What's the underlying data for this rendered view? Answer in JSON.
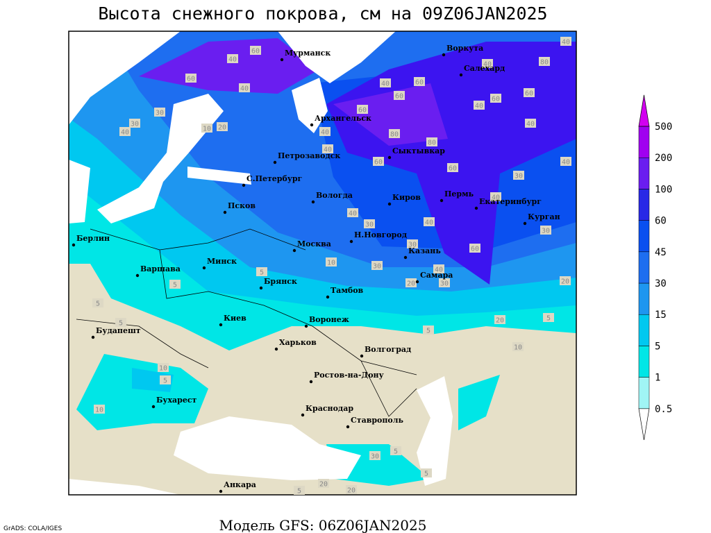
{
  "title": "Высота снежного покрова, см на 09Z06JAN2025",
  "footer": "Модель GFS: 06Z06JAN2025",
  "credit": "GrADS: COLA/IGES",
  "cities": [
    "Мурманск",
    "Воркута",
    "Салехард",
    "Архангельск",
    "Сыктывкар",
    "Петрозаводск",
    "С.Петербург",
    "Вологда",
    "Киров",
    "Пермь",
    "Екатеринбург",
    "Курган",
    "Псков",
    "Берлин",
    "Н.Новгород",
    "Москва",
    "Казань",
    "Варшава",
    "Минск",
    "Брянск",
    "Самара",
    "Тамбов",
    "Киев",
    "Воронеж",
    "Будапешт",
    "Харьков",
    "Волгоград",
    "Ростов-на-Дону",
    "Бухарест",
    "Краснодар",
    "Ставрополь",
    "Анкара"
  ],
  "contour_labels": [
    60,
    40,
    40,
    60,
    30,
    40,
    20,
    10,
    30,
    60,
    40,
    60,
    60,
    80,
    40,
    40,
    80,
    60,
    60,
    40,
    60,
    40,
    60,
    80,
    40,
    40,
    40,
    30,
    40,
    30,
    60,
    40,
    40,
    30,
    30,
    40,
    30,
    20,
    30,
    20,
    20,
    5,
    10,
    5,
    10,
    5,
    5,
    5,
    5,
    10,
    5,
    10,
    30,
    20,
    5,
    5,
    20,
    5
  ],
  "legend": {
    "levels": [
      0.5,
      1,
      5,
      15,
      30,
      45,
      60,
      100,
      200,
      500
    ],
    "colors": [
      "#ffffff",
      "#a0f5f5",
      "#00e6e6",
      "#00c8f0",
      "#1e96f0",
      "#1e6ef0",
      "#0a50f0",
      "#2828e6",
      "#6a1ef0",
      "#a000f0",
      "#d200f0"
    ]
  }
}
